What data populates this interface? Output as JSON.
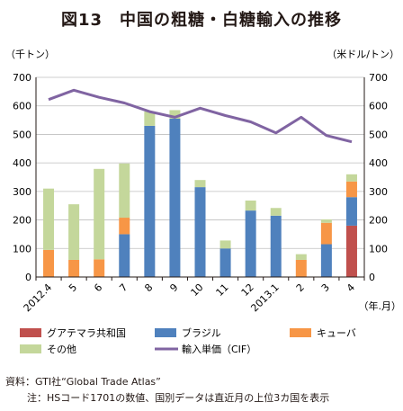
{
  "page": {
    "title": "図13　中国の粗糖・白糖輸入の推移",
    "source": "資料：GTI社“Global Trade Atlas”",
    "note": "注：HSコード1701の数値、国別データは直近月の上位3カ国を表示"
  },
  "chart_data": {
    "type": "bar",
    "stacked": true,
    "title": "図13　中国の粗糖・白糖輸入の推移",
    "ylabel_left": "（千トン）",
    "ylabel_right": "（米ドル/トン）",
    "xlabel": "（年.月）",
    "categories": [
      "2012.4",
      "5",
      "6",
      "7",
      "8",
      "9",
      "10",
      "11",
      "12",
      "2013.1",
      "2",
      "3",
      "4"
    ],
    "ylim": [
      0,
      700
    ],
    "yticks": [
      0,
      100,
      200,
      300,
      400,
      500,
      600,
      700
    ],
    "grid": true,
    "legend_position": "bottom",
    "series": [
      {
        "name": "グアテマラ共和国",
        "color": "#C0504D",
        "values": [
          0,
          0,
          0,
          0,
          0,
          0,
          0,
          0,
          0,
          0,
          0,
          0,
          180
        ]
      },
      {
        "name": "ブラジル",
        "color": "#4F81BD",
        "values": [
          0,
          0,
          0,
          150,
          530,
          555,
          315,
          100,
          233,
          215,
          0,
          115,
          100
        ]
      },
      {
        "name": "キューバ",
        "color": "#F79646",
        "values": [
          95,
          60,
          62,
          58,
          0,
          0,
          0,
          0,
          0,
          0,
          60,
          75,
          55
        ]
      },
      {
        "name": "その他",
        "color": "#C4D79B",
        "values": [
          215,
          195,
          317,
          190,
          50,
          30,
          25,
          28,
          35,
          27,
          20,
          12,
          25
        ]
      }
    ],
    "line_series": {
      "name": "輸入単価（CIF）",
      "color": "#8064A2",
      "axis": "right",
      "values": [
        622,
        655,
        630,
        610,
        580,
        560,
        592,
        566,
        544,
        505,
        560,
        496,
        474
      ]
    }
  }
}
